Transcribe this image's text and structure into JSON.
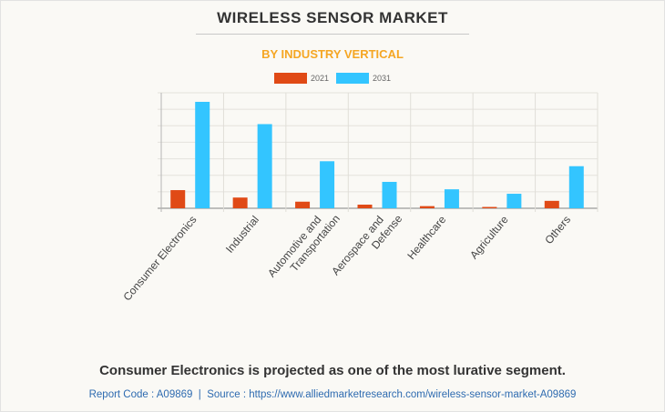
{
  "header": {
    "title": "WIRELESS SENSOR MARKET",
    "subtitle": "BY INDUSTRY VERTICAL"
  },
  "colors": {
    "series_2021": "#e04a16",
    "series_2031": "#33c5ff",
    "subtitle": "#f5a623",
    "source_text": "#2e6bb0"
  },
  "chart_data": {
    "type": "bar",
    "title": "WIRELESS SENSOR MARKET",
    "subtitle": "BY INDUSTRY VERTICAL",
    "xlabel": "",
    "ylabel": "",
    "y_axis_labels_shown": false,
    "ylim": [
      0,
      7
    ],
    "grid": true,
    "legend_position": "top-center",
    "categories": [
      "Consumer Electronics",
      "Industrial",
      "Automotive and Transportation",
      "Aerospace and Defense",
      "Healthcare",
      "Agriculture",
      "Others"
    ],
    "category_label_lines": [
      [
        "Consumer Electronics"
      ],
      [
        "Industrial"
      ],
      [
        "Automotive and",
        "Transportation"
      ],
      [
        "Aerospace and",
        "Defense"
      ],
      [
        "Healthcare"
      ],
      [
        "Agriculture"
      ],
      [
        "Others"
      ]
    ],
    "series": [
      {
        "name": "2021",
        "values": [
          1.1,
          0.65,
          0.4,
          0.22,
          0.13,
          0.08,
          0.45
        ]
      },
      {
        "name": "2031",
        "values": [
          6.45,
          5.1,
          2.85,
          1.6,
          1.15,
          0.88,
          2.55
        ]
      }
    ]
  },
  "footer": {
    "caption": "Consumer Electronics is projected as one of the most lurative segment.",
    "report_code": "Report Code : A09869",
    "separator": "|",
    "source_label": "Source : https://www.alliedmarketresearch.com/wireless-sensor-market-A09869"
  }
}
